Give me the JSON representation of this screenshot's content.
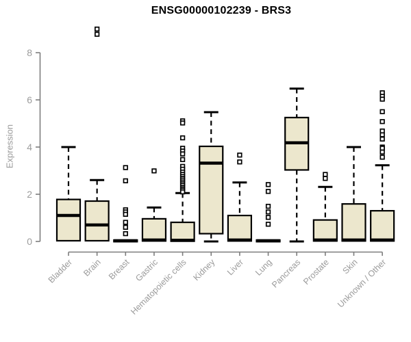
{
  "chart_data": {
    "type": "box",
    "title": "ENSG00000102239 - BRS3",
    "ylabel": "Expression",
    "xlabel": "",
    "ylim": [
      0,
      8
    ],
    "yticks": [
      0,
      2,
      4,
      6,
      8
    ],
    "grid": false,
    "legend": "none",
    "box_fill": "#ece7cd",
    "box_stroke": "#000000",
    "axis_color": "#7d7d7d",
    "label_color": "#9b9b9b",
    "categories": [
      "Bladder",
      "Brain",
      "Breast",
      "Gastric",
      "Hematopoietic cells",
      "Kidney",
      "Liver",
      "Lung",
      "Pancreas",
      "Prostate",
      "Skin",
      "Unknown / Other"
    ],
    "series": [
      {
        "category": "Bladder",
        "whisker_low": 0,
        "q1": 0.03,
        "median": 1.1,
        "q3": 1.78,
        "whisker_high": 4.0,
        "outliers": []
      },
      {
        "category": "Brain",
        "whisker_low": 0,
        "q1": 0.03,
        "median": 0.7,
        "q3": 1.71,
        "whisker_high": 2.6,
        "outliers": [
          9.0,
          8.78
        ]
      },
      {
        "category": "Breast",
        "whisker_low": 0,
        "q1": 0,
        "median": 0.03,
        "q3": 0.06,
        "whisker_high": 0.08,
        "outliers": [
          3.13,
          2.57,
          1.34,
          1.25,
          1.15,
          0.81,
          0.6,
          0.33
        ]
      },
      {
        "category": "Gastric",
        "whisker_low": 0,
        "q1": 0.02,
        "median": 0.06,
        "q3": 0.96,
        "whisker_high": 1.44,
        "outliers": [
          2.99
        ]
      },
      {
        "category": "Hematopoietic cells",
        "whisker_low": 0,
        "q1": 0.01,
        "median": 0.05,
        "q3": 0.81,
        "whisker_high": 2.05,
        "outliers": [
          5.11,
          5.02,
          4.39,
          3.95,
          3.83,
          3.71,
          3.47,
          3.18,
          3.06,
          2.94,
          2.84,
          2.75,
          2.67,
          2.6,
          2.52,
          2.45,
          2.38,
          2.3,
          2.23,
          2.17,
          2.1
        ]
      },
      {
        "category": "Kidney",
        "whisker_low": 0,
        "q1": 0.33,
        "median": 3.32,
        "q3": 4.03,
        "whisker_high": 5.48,
        "outliers": []
      },
      {
        "category": "Liver",
        "whisker_low": 0,
        "q1": 0.02,
        "median": 0.06,
        "q3": 1.1,
        "whisker_high": 2.5,
        "outliers": [
          3.66,
          3.37
        ]
      },
      {
        "category": "Lung",
        "whisker_low": 0,
        "q1": 0,
        "median": 0.03,
        "q3": 0.06,
        "whisker_high": 0.08,
        "outliers": [
          2.41,
          2.12,
          1.49,
          1.25,
          1.02,
          0.73
        ]
      },
      {
        "category": "Pancreas",
        "whisker_low": 0,
        "q1": 3.03,
        "median": 4.18,
        "q3": 5.25,
        "whisker_high": 6.48,
        "outliers": []
      },
      {
        "category": "Prostate",
        "whisker_low": 0,
        "q1": 0.02,
        "median": 0.06,
        "q3": 0.91,
        "whisker_high": 2.31,
        "outliers": [
          2.84,
          2.67
        ]
      },
      {
        "category": "Skin",
        "whisker_low": 0,
        "q1": 0.02,
        "median": 0.06,
        "q3": 1.59,
        "whisker_high": 4.0,
        "outliers": []
      },
      {
        "category": "Unknown / Other",
        "whisker_low": 0,
        "q1": 0.02,
        "median": 0.06,
        "q3": 1.3,
        "whisker_high": 3.23,
        "outliers": [
          6.3,
          6.15,
          6.03,
          5.5,
          5.08,
          4.68,
          4.52,
          4.34,
          4.0,
          3.95,
          3.79,
          3.57
        ]
      }
    ]
  }
}
